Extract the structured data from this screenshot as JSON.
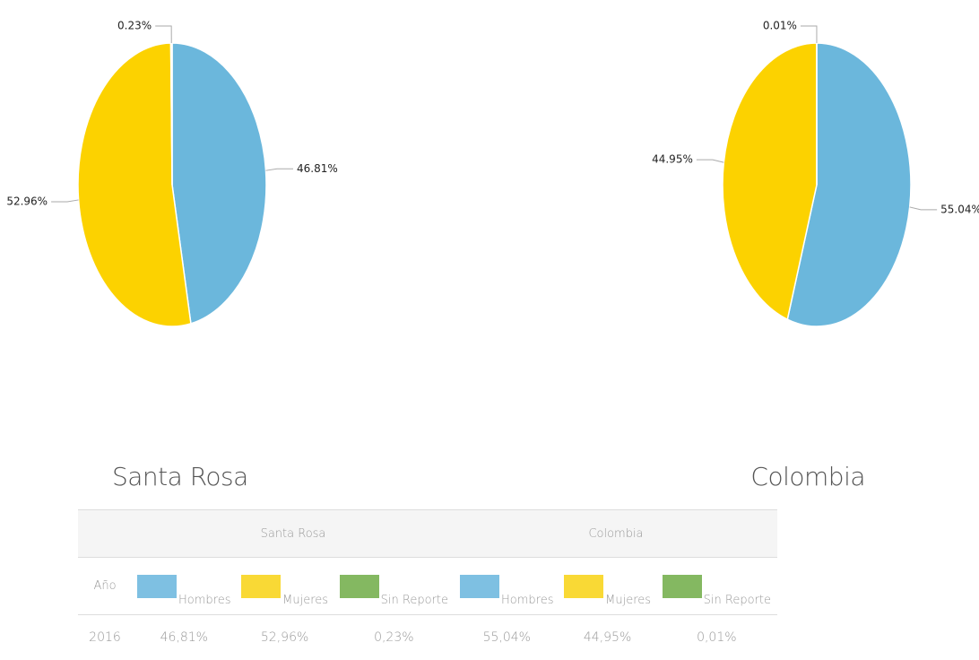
{
  "chart_data": [
    {
      "type": "pie",
      "title": "Santa Rosa",
      "values": [
        46.81,
        52.96,
        0.23
      ],
      "value_labels": [
        "46.81%",
        "52.96%",
        "0.23%"
      ],
      "colors": [
        "#6bb7dc",
        "#fcd200",
        "#80b35a"
      ]
    },
    {
      "type": "pie",
      "title": "Colombia",
      "values": [
        55.04,
        44.95,
        0.01
      ],
      "value_labels": [
        "55.04%",
        "44.95%",
        "0.01%"
      ],
      "colors": [
        "#6bb7dc",
        "#fcd200",
        "#80b35a"
      ]
    }
  ],
  "table": {
    "groups": [
      "Santa Rosa",
      "Colombia"
    ],
    "header": [
      "Año",
      "Hombres",
      "Mujeres",
      "Sin Reporte",
      "Hombres",
      "Mujeres",
      "Sin Reporte"
    ],
    "swatch_colors": [
      "#7ec0e2",
      "#f9d935",
      "#84b861",
      "#7ec0e2",
      "#f9d935",
      "#84b861"
    ],
    "rows": [
      [
        "2016",
        "46,81%",
        "52,96%",
        "0,23%",
        "55,04%",
        "44,95%",
        "0,01%"
      ]
    ]
  }
}
